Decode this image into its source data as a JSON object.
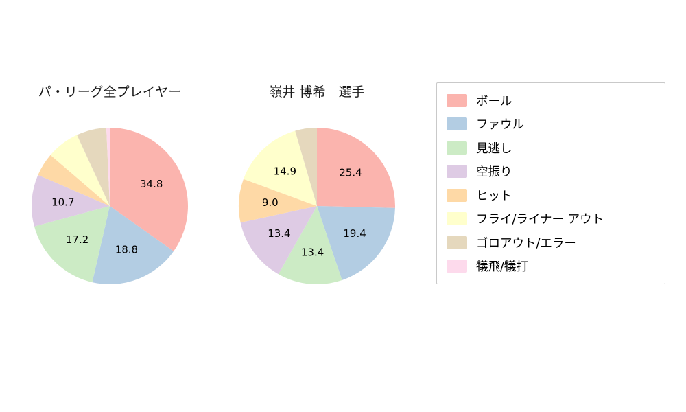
{
  "page": {
    "background_color": "#ffffff"
  },
  "legend": {
    "position": "right",
    "border_color": "#c9c9c9",
    "items": [
      {
        "label": "ボール",
        "color": "#fbb4ae"
      },
      {
        "label": "ファウル",
        "color": "#b3cde3"
      },
      {
        "label": "見逃し",
        "color": "#ccebc5"
      },
      {
        "label": "空振り",
        "color": "#decbe4"
      },
      {
        "label": "ヒット",
        "color": "#fed9a6"
      },
      {
        "label": "フライ/ライナー アウト",
        "color": "#ffffcc"
      },
      {
        "label": "ゴロアウト/エラー",
        "color": "#e5d8bd"
      },
      {
        "label": "犠飛/犠打",
        "color": "#fddaec"
      }
    ]
  },
  "chart_data": [
    {
      "type": "pie",
      "title": "パ・リーグ全プレイヤー",
      "categories": [
        "ボール",
        "ファウル",
        "見逃し",
        "空振り",
        "ヒット",
        "フライ/ライナー アウト",
        "ゴロアウト/エラー",
        "犠飛/犠打"
      ],
      "values": [
        34.8,
        18.8,
        17.2,
        10.7,
        4.8,
        6.8,
        6.2,
        0.7
      ],
      "slice_labels": [
        "34.8",
        "18.8",
        "17.2",
        "10.7",
        "",
        "",
        "",
        ""
      ],
      "colors": [
        "#fbb4ae",
        "#b3cde3",
        "#ccebc5",
        "#decbe4",
        "#fed9a6",
        "#ffffcc",
        "#e5d8bd",
        "#fddaec"
      ],
      "start_angle": "top",
      "direction": "clockwise",
      "label_distance": 0.6,
      "legend_position": "right"
    },
    {
      "type": "pie",
      "title": "嶺井 博希　選手",
      "categories": [
        "ボール",
        "ファウル",
        "見逃し",
        "空振り",
        "ヒット",
        "フライ/ライナー アウト",
        "ゴロアウト/エラー",
        "犠飛/犠打"
      ],
      "values": [
        25.4,
        19.4,
        13.4,
        13.4,
        9.0,
        14.9,
        4.5,
        0.0
      ],
      "slice_labels": [
        "25.4",
        "19.4",
        "13.4",
        "13.4",
        "9.0",
        "14.9",
        "",
        ""
      ],
      "colors": [
        "#fbb4ae",
        "#b3cde3",
        "#ccebc5",
        "#decbe4",
        "#fed9a6",
        "#ffffcc",
        "#e5d8bd",
        "#fddaec"
      ],
      "start_angle": "top",
      "direction": "clockwise",
      "label_distance": 0.6,
      "legend_position": "right"
    }
  ]
}
